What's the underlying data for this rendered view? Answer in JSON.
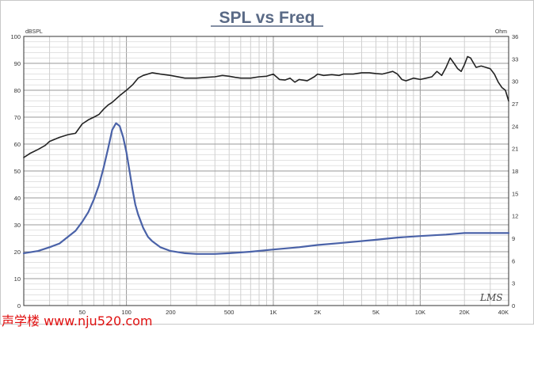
{
  "chart_data": {
    "type": "line",
    "title": "SPL vs Freq",
    "y_left_unit": "dBSPL",
    "y_right_unit": "Ohm",
    "y_left_range": [
      0,
      100
    ],
    "y_right_range": [
      0,
      36
    ],
    "x_range": [
      20,
      40000
    ],
    "x_scale": "log",
    "grid": true,
    "y_left_ticks": [
      "0",
      "10",
      "20",
      "30",
      "40",
      "50",
      "60",
      "70",
      "80",
      "90",
      "100"
    ],
    "y_right_ticks": [
      "0",
      "3",
      "6",
      "9",
      "12",
      "15",
      "18",
      "21",
      "24",
      "27",
      "30",
      "33",
      "36"
    ],
    "x_ticks": [
      {
        "value": 50,
        "label": "50"
      },
      {
        "value": 100,
        "label": "100"
      },
      {
        "value": 200,
        "label": "200"
      },
      {
        "value": 500,
        "label": "500"
      },
      {
        "value": 1000,
        "label": "1K"
      },
      {
        "value": 2000,
        "label": "2K"
      },
      {
        "value": 5000,
        "label": "5K"
      },
      {
        "value": 10000,
        "label": "10K"
      },
      {
        "value": 20000,
        "label": "20K"
      },
      {
        "value": 40000,
        "label": "40K"
      }
    ],
    "series": [
      {
        "axis": "left",
        "color": "#222222",
        "x": [
          20,
          22,
          25,
          28,
          30,
          35,
          40,
          45,
          50,
          55,
          60,
          65,
          70,
          75,
          80,
          90,
          100,
          110,
          120,
          130,
          150,
          170,
          200,
          250,
          300,
          350,
          400,
          450,
          500,
          550,
          600,
          700,
          800,
          900,
          1000,
          1100,
          1200,
          1300,
          1400,
          1500,
          1700,
          1900,
          2000,
          2200,
          2500,
          2800,
          3000,
          3500,
          4000,
          4500,
          5000,
          5500,
          6000,
          6500,
          7000,
          7500,
          8000,
          9000,
          10000,
          11000,
          12000,
          13000,
          14000,
          15000,
          16000,
          17000,
          18000,
          19000,
          20000,
          21000,
          22000,
          24000,
          26000,
          28000,
          30000,
          32000,
          34000,
          36000,
          38000,
          40000
        ],
        "y": [
          55,
          56.5,
          58,
          59.5,
          61,
          62.5,
          63.5,
          64,
          67.5,
          69,
          70,
          71,
          73,
          74.5,
          75.5,
          78,
          80,
          82,
          84.5,
          85.5,
          86.5,
          86,
          85.5,
          84.5,
          84.5,
          84.8,
          85,
          85.5,
          85.2,
          84.8,
          84.5,
          84.5,
          85,
          85.2,
          86,
          84,
          83.8,
          84.5,
          83,
          84,
          83.5,
          85,
          86,
          85.5,
          85.8,
          85.5,
          86,
          86,
          86.5,
          86.5,
          86.2,
          86,
          86.5,
          87,
          86,
          84,
          83.5,
          84.5,
          84,
          84.5,
          85,
          87,
          85.5,
          88.5,
          92,
          90,
          88,
          87,
          89.5,
          92.5,
          92,
          88.5,
          89,
          88.5,
          88,
          86,
          83,
          81,
          80,
          76
        ]
      },
      {
        "axis": "right",
        "color": "#4a62a8",
        "x": [
          20,
          25,
          30,
          35,
          40,
          45,
          50,
          55,
          60,
          65,
          70,
          75,
          80,
          85,
          90,
          95,
          100,
          105,
          110,
          115,
          120,
          130,
          140,
          150,
          170,
          200,
          250,
          300,
          400,
          500,
          700,
          1000,
          1500,
          2000,
          3000,
          5000,
          7000,
          10000,
          15000,
          20000,
          30000,
          40000
        ],
        "y": [
          7,
          7.3,
          7.8,
          8.3,
          9.2,
          10,
          11.2,
          12.5,
          14.2,
          16.1,
          18.5,
          21,
          23.5,
          24.4,
          24,
          22.5,
          20.5,
          18,
          15.5,
          13.5,
          12.2,
          10.4,
          9.2,
          8.6,
          7.8,
          7.3,
          7.0,
          6.9,
          6.9,
          7.0,
          7.2,
          7.5,
          7.8,
          8.1,
          8.4,
          8.8,
          9.1,
          9.3,
          9.5,
          9.7,
          9.7,
          9.7
        ]
      }
    ]
  },
  "signature": "LMS",
  "watermark": "声学楼 www.nju520.com"
}
